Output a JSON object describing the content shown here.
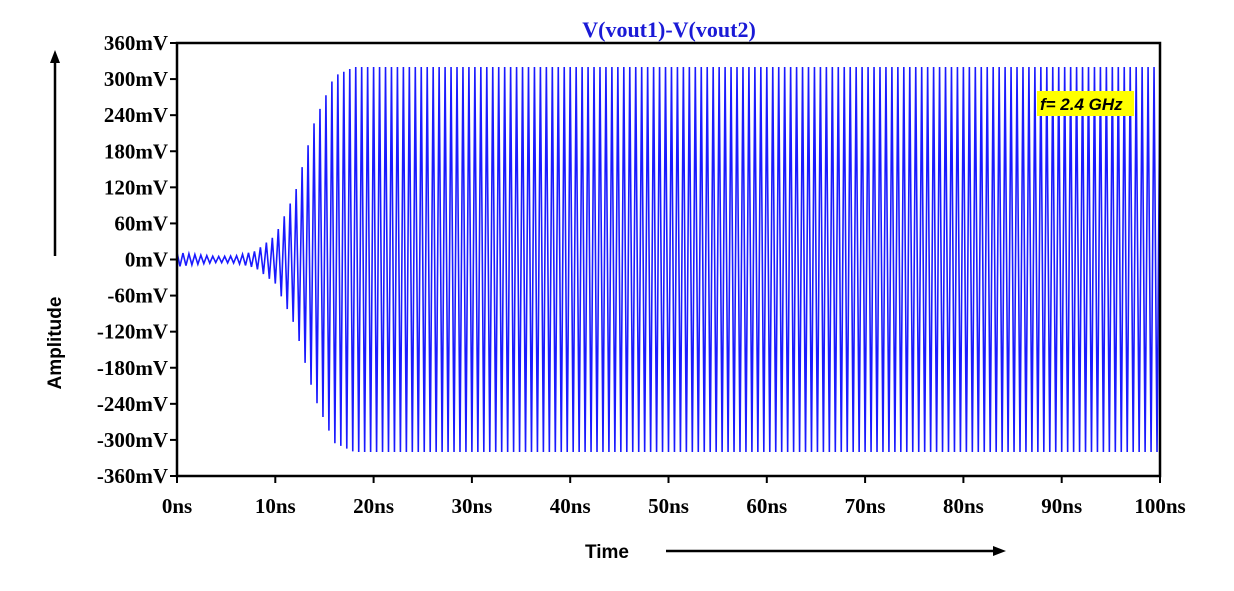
{
  "chart_data": {
    "type": "line",
    "title": "V(vout1)-V(vout2)",
    "xlabel": "Time",
    "ylabel": "Amplitude",
    "x_unit": "ns",
    "y_unit": "mV",
    "xlim": [
      0,
      100
    ],
    "ylim": [
      -360,
      360
    ],
    "x_ticks": [
      0,
      10,
      20,
      30,
      40,
      50,
      60,
      70,
      80,
      90,
      100
    ],
    "x_tick_labels": [
      "0ns",
      "10ns",
      "20ns",
      "30ns",
      "40ns",
      "50ns",
      "60ns",
      "70ns",
      "80ns",
      "90ns",
      "100ns"
    ],
    "y_ticks": [
      360,
      300,
      240,
      180,
      120,
      60,
      0,
      -60,
      -120,
      -180,
      -240,
      -300,
      -360
    ],
    "y_tick_labels": [
      "360mV",
      "300mV",
      "240mV",
      "180mV",
      "120mV",
      "60mV",
      "0mV",
      "-60mV",
      "-120mV",
      "-180mV",
      "-240mV",
      "-300mV",
      "-360mV"
    ],
    "grid": false,
    "annotation": "f= 2.4 GHz",
    "series": [
      {
        "color": "#1a1aff",
        "frequency_ghz": 2.4,
        "envelope_ns": [
          0,
          2,
          4,
          6,
          8,
          10,
          12,
          14,
          16,
          18,
          20,
          100
        ],
        "envelope_mv": [
          12,
          8,
          5,
          6,
          14,
          40,
          110,
          230,
          305,
          320,
          320,
          320
        ]
      }
    ]
  }
}
